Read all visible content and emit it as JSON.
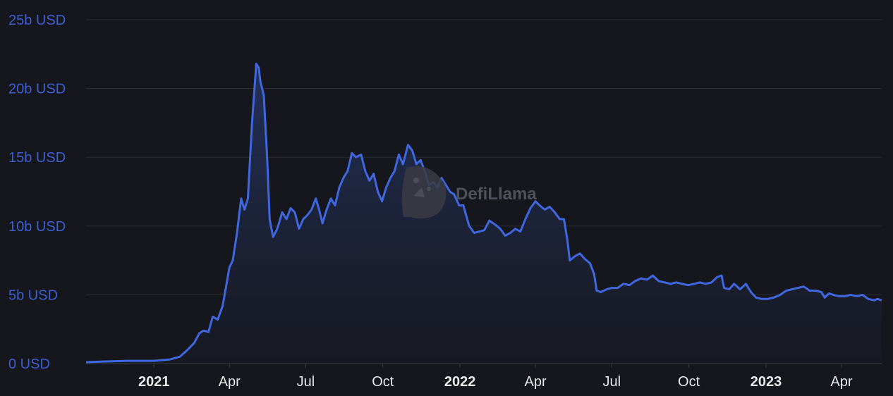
{
  "chart_data": {
    "type": "area",
    "title": "",
    "xlabel": "",
    "ylabel": "",
    "ylim": [
      0,
      25
    ],
    "y_unit": "b USD",
    "grid": true,
    "y_ticks": [
      {
        "value": 0,
        "label": "0 USD"
      },
      {
        "value": 5,
        "label": "5b USD"
      },
      {
        "value": 10,
        "label": "10b USD"
      },
      {
        "value": 15,
        "label": "15b USD"
      },
      {
        "value": 20,
        "label": "20b USD"
      },
      {
        "value": 25,
        "label": "25b USD"
      }
    ],
    "x_ticks": [
      {
        "date": "2021-01-01",
        "label": "2021",
        "major": true
      },
      {
        "date": "2021-04-01",
        "label": "Apr",
        "major": false
      },
      {
        "date": "2021-07-01",
        "label": "Jul",
        "major": false
      },
      {
        "date": "2021-10-01",
        "label": "Oct",
        "major": false
      },
      {
        "date": "2022-01-01",
        "label": "2022",
        "major": true
      },
      {
        "date": "2022-04-01",
        "label": "Apr",
        "major": false
      },
      {
        "date": "2022-07-01",
        "label": "Jul",
        "major": false
      },
      {
        "date": "2022-10-01",
        "label": "Oct",
        "major": false
      },
      {
        "date": "2023-01-01",
        "label": "2023",
        "major": true
      },
      {
        "date": "2023-04-01",
        "label": "Apr",
        "major": false
      }
    ],
    "x_range": [
      "2020-10-12",
      "2023-05-19"
    ],
    "series": [
      {
        "color": "#3f68e0",
        "points": [
          [
            "2020-10-12",
            0.1
          ],
          [
            "2020-11-01",
            0.15
          ],
          [
            "2020-12-01",
            0.2
          ],
          [
            "2021-01-01",
            0.2
          ],
          [
            "2021-01-20",
            0.3
          ],
          [
            "2021-02-01",
            0.5
          ],
          [
            "2021-02-10",
            1.0
          ],
          [
            "2021-02-18",
            1.5
          ],
          [
            "2021-02-24",
            2.2
          ],
          [
            "2021-03-01",
            2.4
          ],
          [
            "2021-03-07",
            2.3
          ],
          [
            "2021-03-12",
            3.4
          ],
          [
            "2021-03-18",
            3.2
          ],
          [
            "2021-03-24",
            4.2
          ],
          [
            "2021-04-01",
            7.0
          ],
          [
            "2021-04-05",
            7.5
          ],
          [
            "2021-04-10",
            9.5
          ],
          [
            "2021-04-15",
            12.0
          ],
          [
            "2021-04-19",
            11.2
          ],
          [
            "2021-04-23",
            12.0
          ],
          [
            "2021-04-28",
            17.5
          ],
          [
            "2021-05-03",
            21.8
          ],
          [
            "2021-05-06",
            21.5
          ],
          [
            "2021-05-08",
            20.5
          ],
          [
            "2021-05-12",
            19.5
          ],
          [
            "2021-05-16",
            15.0
          ],
          [
            "2021-05-19",
            10.5
          ],
          [
            "2021-05-23",
            9.2
          ],
          [
            "2021-05-28",
            9.8
          ],
          [
            "2021-06-03",
            11.0
          ],
          [
            "2021-06-08",
            10.5
          ],
          [
            "2021-06-13",
            11.3
          ],
          [
            "2021-06-18",
            11.0
          ],
          [
            "2021-06-23",
            9.8
          ],
          [
            "2021-06-28",
            10.5
          ],
          [
            "2021-07-03",
            10.8
          ],
          [
            "2021-07-08",
            11.2
          ],
          [
            "2021-07-13",
            12.0
          ],
          [
            "2021-07-17",
            11.2
          ],
          [
            "2021-07-21",
            10.2
          ],
          [
            "2021-07-26",
            11.2
          ],
          [
            "2021-07-31",
            12.0
          ],
          [
            "2021-08-05",
            11.5
          ],
          [
            "2021-08-10",
            12.8
          ],
          [
            "2021-08-15",
            13.5
          ],
          [
            "2021-08-20",
            14.0
          ],
          [
            "2021-08-25",
            15.3
          ],
          [
            "2021-08-30",
            15.0
          ],
          [
            "2021-09-05",
            15.2
          ],
          [
            "2021-09-10",
            14.0
          ],
          [
            "2021-09-15",
            13.3
          ],
          [
            "2021-09-20",
            13.8
          ],
          [
            "2021-09-25",
            12.5
          ],
          [
            "2021-09-30",
            11.8
          ],
          [
            "2021-10-05",
            12.8
          ],
          [
            "2021-10-10",
            13.5
          ],
          [
            "2021-10-15",
            14.0
          ],
          [
            "2021-10-20",
            15.2
          ],
          [
            "2021-10-25",
            14.5
          ],
          [
            "2021-10-31",
            15.9
          ],
          [
            "2021-11-05",
            15.5
          ],
          [
            "2021-11-10",
            14.5
          ],
          [
            "2021-11-15",
            14.8
          ],
          [
            "2021-11-20",
            14.0
          ],
          [
            "2021-11-25",
            13.0
          ],
          [
            "2021-12-01",
            13.2
          ],
          [
            "2021-12-05",
            12.8
          ],
          [
            "2021-12-10",
            13.5
          ],
          [
            "2021-12-15",
            13.0
          ],
          [
            "2021-12-20",
            12.5
          ],
          [
            "2021-12-25",
            12.3
          ],
          [
            "2021-12-31",
            11.5
          ],
          [
            "2022-01-05",
            11.5
          ],
          [
            "2022-01-12",
            10.0
          ],
          [
            "2022-01-18",
            9.5
          ],
          [
            "2022-01-24",
            9.6
          ],
          [
            "2022-01-30",
            9.7
          ],
          [
            "2022-02-05",
            10.4
          ],
          [
            "2022-02-12",
            10.1
          ],
          [
            "2022-02-18",
            9.8
          ],
          [
            "2022-02-24",
            9.3
          ],
          [
            "2022-03-02",
            9.5
          ],
          [
            "2022-03-08",
            9.8
          ],
          [
            "2022-03-14",
            9.6
          ],
          [
            "2022-03-20",
            10.5
          ],
          [
            "2022-03-26",
            11.3
          ],
          [
            "2022-04-01",
            11.8
          ],
          [
            "2022-04-06",
            11.5
          ],
          [
            "2022-04-12",
            11.2
          ],
          [
            "2022-04-18",
            11.4
          ],
          [
            "2022-04-24",
            11.0
          ],
          [
            "2022-04-30",
            10.5
          ],
          [
            "2022-05-05",
            10.5
          ],
          [
            "2022-05-09",
            9.0
          ],
          [
            "2022-05-12",
            7.5
          ],
          [
            "2022-05-18",
            7.8
          ],
          [
            "2022-05-24",
            8.0
          ],
          [
            "2022-05-30",
            7.6
          ],
          [
            "2022-06-05",
            7.3
          ],
          [
            "2022-06-10",
            6.5
          ],
          [
            "2022-06-13",
            5.3
          ],
          [
            "2022-06-18",
            5.2
          ],
          [
            "2022-06-25",
            5.4
          ],
          [
            "2022-07-01",
            5.5
          ],
          [
            "2022-07-08",
            5.5
          ],
          [
            "2022-07-15",
            5.8
          ],
          [
            "2022-07-22",
            5.7
          ],
          [
            "2022-07-29",
            6.0
          ],
          [
            "2022-08-05",
            6.2
          ],
          [
            "2022-08-12",
            6.1
          ],
          [
            "2022-08-19",
            6.4
          ],
          [
            "2022-08-26",
            6.0
          ],
          [
            "2022-09-02",
            5.9
          ],
          [
            "2022-09-09",
            5.8
          ],
          [
            "2022-09-16",
            5.9
          ],
          [
            "2022-09-23",
            5.8
          ],
          [
            "2022-09-30",
            5.7
          ],
          [
            "2022-10-07",
            5.8
          ],
          [
            "2022-10-14",
            5.9
          ],
          [
            "2022-10-21",
            5.8
          ],
          [
            "2022-10-28",
            5.9
          ],
          [
            "2022-11-04",
            6.3
          ],
          [
            "2022-11-09",
            6.4
          ],
          [
            "2022-11-12",
            5.5
          ],
          [
            "2022-11-18",
            5.4
          ],
          [
            "2022-11-24",
            5.8
          ],
          [
            "2022-12-01",
            5.4
          ],
          [
            "2022-12-08",
            5.8
          ],
          [
            "2022-12-14",
            5.2
          ],
          [
            "2022-12-20",
            4.8
          ],
          [
            "2022-12-27",
            4.7
          ],
          [
            "2023-01-03",
            4.7
          ],
          [
            "2023-01-10",
            4.8
          ],
          [
            "2023-01-18",
            5.0
          ],
          [
            "2023-01-25",
            5.3
          ],
          [
            "2023-02-01",
            5.4
          ],
          [
            "2023-02-08",
            5.5
          ],
          [
            "2023-02-15",
            5.6
          ],
          [
            "2023-02-22",
            5.3
          ],
          [
            "2023-03-01",
            5.3
          ],
          [
            "2023-03-08",
            5.2
          ],
          [
            "2023-03-12",
            4.8
          ],
          [
            "2023-03-17",
            5.1
          ],
          [
            "2023-03-22",
            5.0
          ],
          [
            "2023-03-29",
            4.9
          ],
          [
            "2023-04-05",
            4.9
          ],
          [
            "2023-04-12",
            5.0
          ],
          [
            "2023-04-19",
            4.9
          ],
          [
            "2023-04-26",
            5.0
          ],
          [
            "2023-05-03",
            4.7
          ],
          [
            "2023-05-10",
            4.6
          ],
          [
            "2023-05-14",
            4.7
          ],
          [
            "2023-05-19",
            4.6
          ]
        ]
      }
    ]
  },
  "watermark": {
    "text": "DefiLlama",
    "icon": "llama-logo-icon"
  },
  "colors": {
    "background": "#16171c",
    "line": "#3f68e0",
    "area_top": "#24335f",
    "area_bottom": "#181a26",
    "y_tick_text": "#3c5fd4",
    "x_tick_text": "#e8e8ea",
    "grid": "#2b2d34"
  }
}
